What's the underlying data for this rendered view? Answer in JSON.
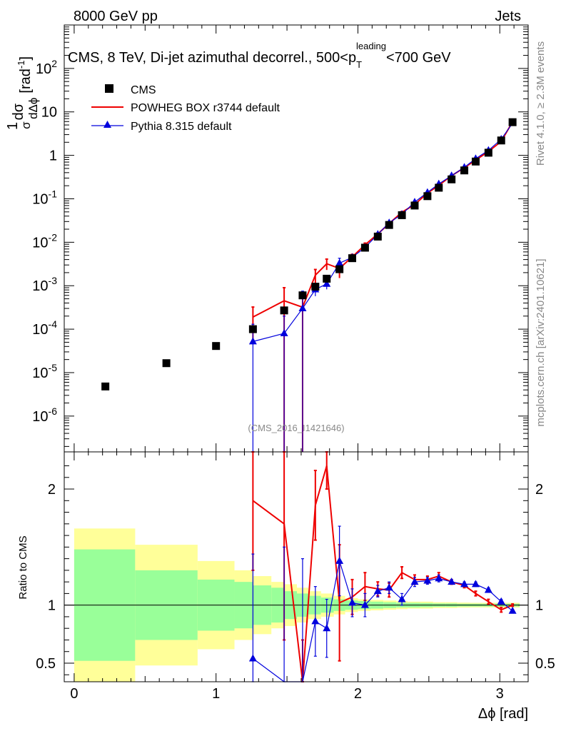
{
  "header": {
    "left": "8000 GeV pp",
    "right": "Jets"
  },
  "side_labels": {
    "rivet": "Rivet 4.1.0, ≥ 2.3M events",
    "mcplots": "mcplots.cern.ch [arXiv:2401.10621]"
  },
  "watermark": "(CMS_2016_I1421646)",
  "colors": {
    "cms": "#000000",
    "powheg": "#ee0000",
    "pythia": "#0000dd",
    "band_inner": "#99ff99",
    "band_outer": "#ffff99"
  },
  "chart_data": {
    "type": "scatter",
    "title": "CMS, 8 TeV, Di-jet azimuthal decorrel., 500<p_T^leading<700 GeV",
    "title_parts": {
      "main": "CMS, 8 TeV, Di-jet azimuthal decorrel., 500<p",
      "sub": "T",
      "sup": "leading",
      "tail": "<700 GeV"
    },
    "xlabel": "Δϕ [rad]",
    "ylabel": "1/σ dσ/dΔϕ [rad⁻¹]",
    "ylabel_parts": {
      "frac1_num": "1",
      "frac1_den": "σ",
      "frac2_num": "dσ",
      "frac2_den": "dΔϕ",
      "unit": "[rad",
      "unit_sup": "-1",
      "unit_close": "]"
    },
    "ratio_ylabel": "Ratio to CMS",
    "xlim": [
      -0.07,
      3.2
    ],
    "ylim_log": [
      1.5e-07,
      1000
    ],
    "ratio_ylim": [
      0.34,
      2.32
    ],
    "x_ticks": [
      "0",
      "1",
      "2",
      "3"
    ],
    "y_ticks_main": [
      {
        "base": "10",
        "exp": "-6",
        "value": 1e-06
      },
      {
        "base": "10",
        "exp": "-5",
        "value": 1e-05
      },
      {
        "base": "10",
        "exp": "-4",
        "value": 0.0001
      },
      {
        "base": "10",
        "exp": "-3",
        "value": 0.001
      },
      {
        "base": "10",
        "exp": "-2",
        "value": 0.01
      },
      {
        "base": "10",
        "exp": "-1",
        "value": 0.1
      },
      {
        "base": "1",
        "exp": "",
        "value": 1
      },
      {
        "base": "10",
        "exp": "",
        "value": 10
      },
      {
        "base": "10",
        "exp": "2",
        "value": 100
      }
    ],
    "ratio_ticks": [
      "0.5",
      "1",
      "2"
    ],
    "legend": [
      "CMS",
      "POWHEG BOX r3744 default",
      "Pythia 8.315 default"
    ],
    "cms": {
      "x": [
        0.22,
        0.65,
        1.0,
        1.26,
        1.48,
        1.61,
        1.7,
        1.78,
        1.87,
        1.96,
        2.05,
        2.14,
        2.22,
        2.31,
        2.4,
        2.49,
        2.57,
        2.66,
        2.75,
        2.83,
        2.92,
        3.01,
        3.09
      ],
      "y": [
        4.8e-06,
        1.65e-05,
        4.1e-05,
        0.0001,
        0.00027,
        0.0006,
        0.00095,
        0.00145,
        0.0024,
        0.0043,
        0.0075,
        0.0135,
        0.025,
        0.042,
        0.07,
        0.115,
        0.18,
        0.28,
        0.45,
        0.72,
        1.15,
        2.2,
        5.8
      ]
    },
    "band_edges": [
      0,
      0.43,
      0.87,
      1.13,
      1.26,
      1.39,
      1.48,
      1.57,
      1.65,
      1.74,
      1.83,
      1.91,
      2.0,
      2.09,
      2.18,
      2.27,
      2.35,
      2.44,
      2.53,
      2.62,
      2.7,
      2.79,
      2.88,
      2.97,
      3.05,
      3.14
    ],
    "band_outer_half": [
      0.66,
      0.52,
      0.38,
      0.3,
      0.25,
      0.2,
      0.18,
      0.15,
      0.12,
      0.1,
      0.08,
      0.06,
      0.05,
      0.045,
      0.04,
      0.035,
      0.03,
      0.03,
      0.025,
      0.025,
      0.022,
      0.02,
      0.02,
      0.02,
      0.02
    ],
    "band_inner_half": [
      0.48,
      0.3,
      0.22,
      0.2,
      0.17,
      0.15,
      0.12,
      0.1,
      0.08,
      0.065,
      0.05,
      0.04,
      0.035,
      0.03,
      0.025,
      0.02,
      0.02,
      0.018,
      0.015,
      0.015,
      0.012,
      0.012,
      0.012,
      0.012,
      0.012
    ],
    "series": [
      {
        "name": "POWHEG BOX r3744 default",
        "x": [
          1.26,
          1.48,
          1.61,
          1.7,
          1.78,
          1.87,
          1.96,
          2.05,
          2.14,
          2.22,
          2.31,
          2.4,
          2.49,
          2.57,
          2.66,
          2.75,
          2.83,
          2.92,
          3.01,
          3.09
        ],
        "y": [
          0.00019,
          0.00045,
          0.00032,
          0.00175,
          0.0032,
          0.0025,
          0.0046,
          0.0087,
          0.0155,
          0.027,
          0.049,
          0.074,
          0.135,
          0.205,
          0.34,
          0.52,
          0.78,
          1.22,
          2.1,
          5.9
        ],
        "ratio": [
          1.9,
          1.7,
          0.1,
          1.86,
          2.2,
          1.02,
          1.07,
          1.16,
          1.14,
          1.13,
          1.28,
          1.22,
          1.22,
          1.25,
          1.2,
          1.17,
          1.1,
          1.03,
          0.96,
          1.0
        ],
        "ratio_err": [
          0.6,
          1.0,
          0.6,
          0.3,
          0.2,
          0.5,
          0.15,
          0.12,
          0.06,
          0.06,
          0.05,
          0.04,
          0.03,
          0.03,
          0.02,
          0.02,
          0.02,
          0.02,
          0.02,
          0.01
        ],
        "y_err_rel": [
          0.7,
          1.0,
          1.0,
          0.35,
          0.28,
          0.4,
          0.15,
          0.1,
          0.06,
          0.05,
          0.04,
          0.03,
          0.03,
          0.02,
          0.02,
          0.02,
          0.02,
          0.02,
          0.02,
          0.01
        ]
      },
      {
        "name": "Pythia 8.315 default",
        "x": [
          1.26,
          1.48,
          1.61,
          1.7,
          1.78,
          1.87,
          1.96,
          2.05,
          2.14,
          2.22,
          2.31,
          2.4,
          2.49,
          2.57,
          2.66,
          2.75,
          2.83,
          2.92,
          3.01,
          3.09
        ],
        "y": [
          5.2e-05,
          8e-05,
          0.0003,
          0.00082,
          0.0011,
          0.0033,
          0.0045,
          0.0076,
          0.0152,
          0.028,
          0.044,
          0.084,
          0.14,
          0.22,
          0.34,
          0.53,
          0.84,
          1.3,
          2.35,
          5.5
        ],
        "ratio": [
          0.54,
          0.3,
          0.2,
          0.86,
          0.8,
          1.38,
          1.02,
          1.0,
          1.12,
          1.15,
          1.05,
          1.2,
          1.21,
          1.23,
          1.2,
          1.18,
          1.18,
          1.13,
          1.03,
          0.95
        ],
        "ratio_err": [
          0.9,
          1.2,
          1.2,
          0.3,
          0.25,
          0.3,
          0.12,
          0.1,
          0.05,
          0.05,
          0.05,
          0.04,
          0.03,
          0.03,
          0.02,
          0.02,
          0.02,
          0.02,
          0.02,
          0.01
        ],
        "y_err_rel": [
          1.5,
          1.5,
          1.5,
          0.3,
          0.25,
          0.3,
          0.12,
          0.1,
          0.05,
          0.05,
          0.05,
          0.04,
          0.03,
          0.03,
          0.02,
          0.02,
          0.02,
          0.02,
          0.02,
          0.01
        ]
      }
    ]
  }
}
